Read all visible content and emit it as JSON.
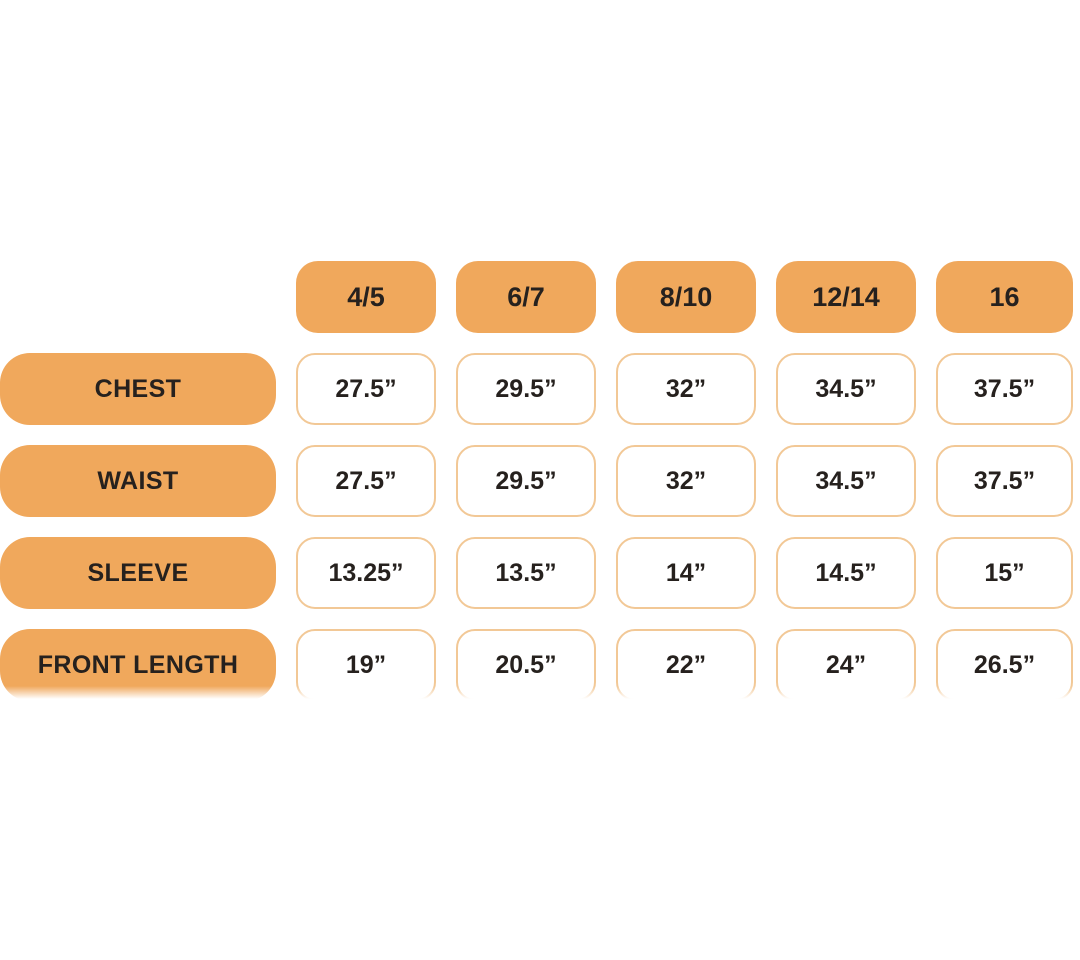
{
  "chart_data": {
    "type": "table",
    "column_headers": [
      "4/5",
      "6/7",
      "8/10",
      "12/14",
      "16"
    ],
    "rows": [
      {
        "label": "CHEST",
        "values": [
          "27.5”",
          "29.5”",
          "32”",
          "34.5”",
          "37.5”"
        ]
      },
      {
        "label": "WAIST",
        "values": [
          "27.5”",
          "29.5”",
          "32”",
          "34.5”",
          "37.5”"
        ]
      },
      {
        "label": "SLEEVE",
        "values": [
          "13.25”",
          "13.5”",
          "14”",
          "14.5”",
          "15”"
        ]
      },
      {
        "label": "FRONT LENGTH",
        "values": [
          "19”",
          "20.5”",
          "22”",
          "24”",
          "26.5”"
        ]
      }
    ]
  },
  "colors": {
    "accent": "#F0A85C",
    "cell_border": "#F2C896",
    "text": "#26211E",
    "background": "#FFFFFF"
  }
}
